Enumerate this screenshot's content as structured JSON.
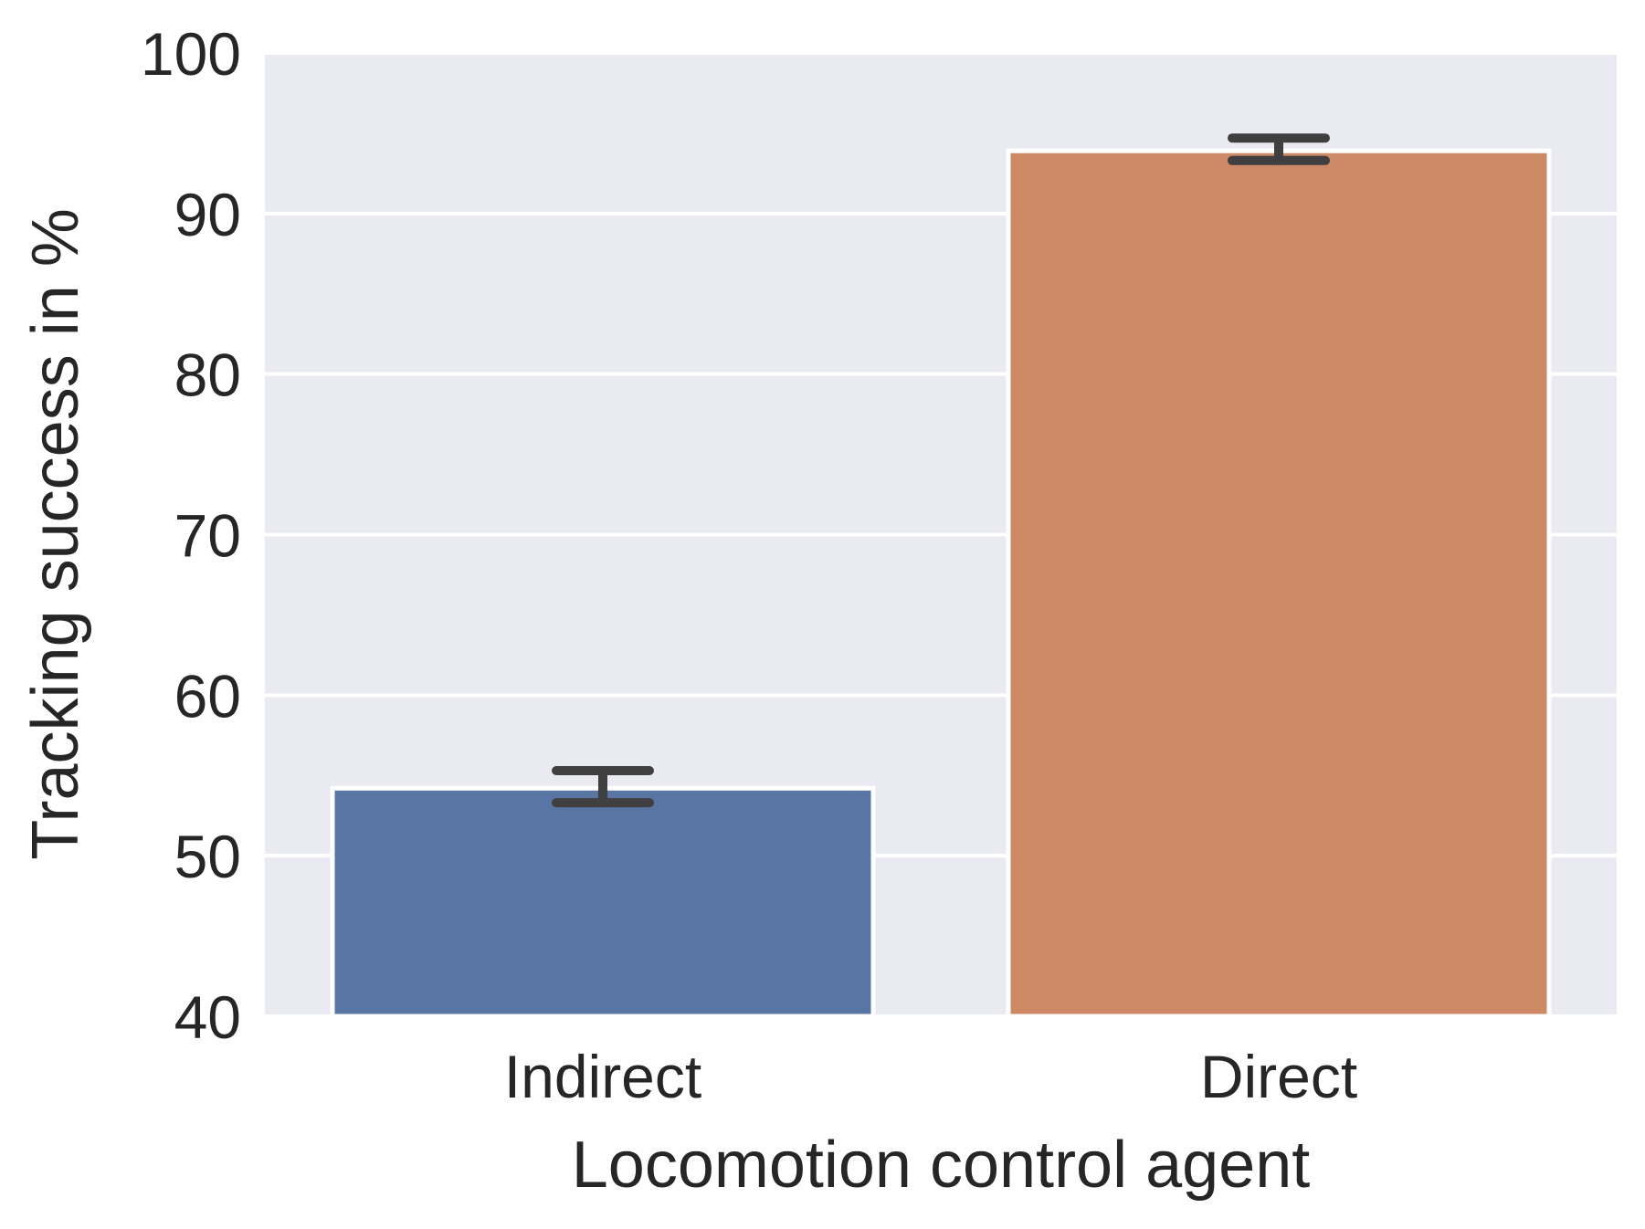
{
  "chart_data": {
    "type": "bar",
    "title": "",
    "xlabel": "Locomotion control agent",
    "ylabel": "Tracking success in %",
    "categories": [
      "Indirect",
      "Direct"
    ],
    "values": [
      54.2,
      93.9
    ],
    "error_bars": [
      {
        "low": 53.3,
        "high": 55.3
      },
      {
        "low": 93.3,
        "high": 94.7
      }
    ],
    "ylim": [
      40,
      100
    ],
    "yticks": [
      40,
      50,
      60,
      70,
      80,
      90,
      100
    ],
    "grid": true,
    "legend": "none",
    "colors": {
      "bars": [
        "#5875a4",
        "#cc8963"
      ],
      "background": "#eaeaf2",
      "grid": "#ffffff",
      "errorbar": "#3f3f3f",
      "text": "#262626"
    }
  }
}
